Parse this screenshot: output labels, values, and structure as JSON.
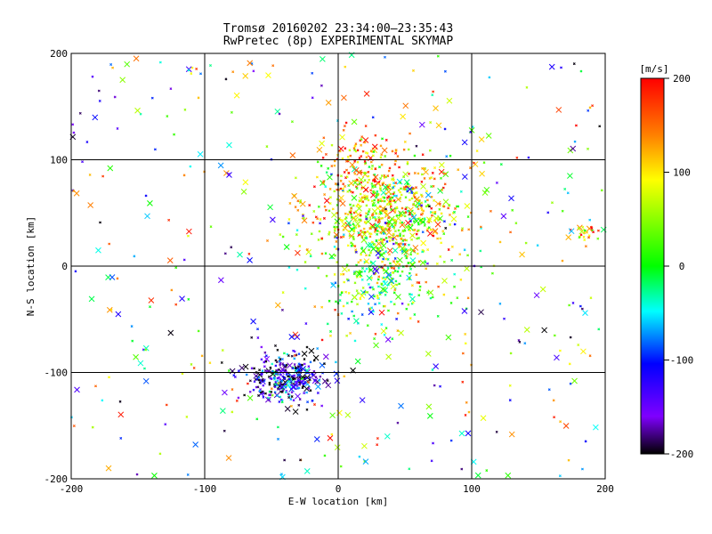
{
  "chart_data": {
    "type": "scatter",
    "title": "Tromsø 20160202 23:34:00–23:35:43",
    "subtitle": "RwPretec (8p) EXPERIMENTAL SKYMAP",
    "xlabel": "E-W location [km]",
    "ylabel": "N-S location [km]",
    "xlim": [
      -200,
      200
    ],
    "ylim": [
      -200,
      200
    ],
    "xticks": [
      "-200",
      "-100",
      "0",
      "100",
      "200"
    ],
    "yticks": [
      "-200",
      "-100",
      "0",
      "100",
      "200"
    ],
    "grid": true,
    "colorbar": {
      "label": "[m/s]",
      "range": [
        -200,
        200
      ],
      "ticks": [
        "200",
        "100",
        "0",
        "-100",
        "-200"
      ]
    },
    "clusters": [
      {
        "center": [
          35,
          50
        ],
        "spread": [
          30,
          25
        ],
        "velocity_mean": 80
      },
      {
        "center": [
          -40,
          -105
        ],
        "spread": [
          15,
          12
        ],
        "velocity_mean": -150
      },
      {
        "center": [
          30,
          -10
        ],
        "spread": [
          20,
          30
        ],
        "velocity_mean": 20
      },
      {
        "center": [
          15,
          100
        ],
        "spread": [
          15,
          15
        ],
        "velocity_mean": 150
      },
      {
        "center": [
          190,
          30
        ],
        "spread": [
          8,
          6
        ],
        "velocity_mean": 90
      }
    ]
  }
}
